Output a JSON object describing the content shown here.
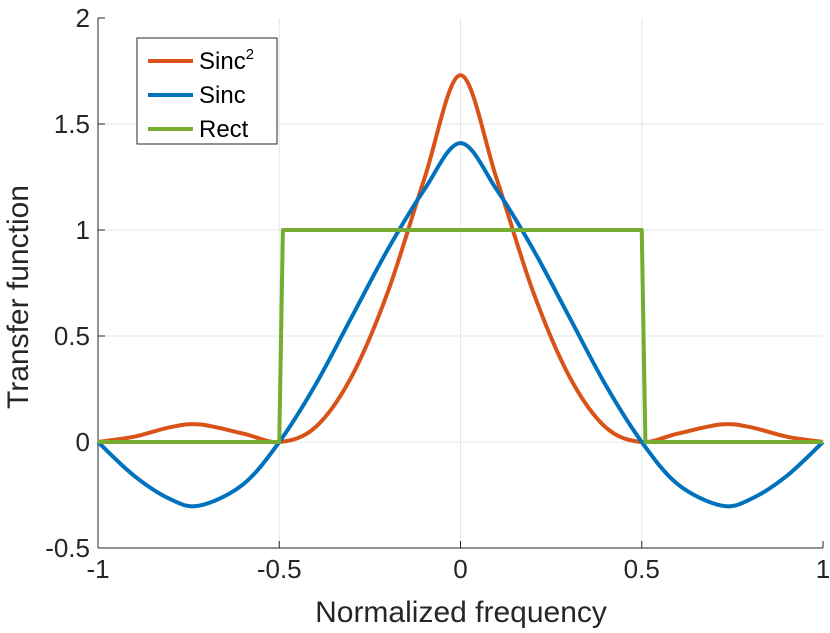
{
  "chart_data": {
    "type": "line",
    "title": "",
    "xlabel": "Normalized frequency",
    "ylabel": "Transfer function",
    "xlim": [
      -1,
      1
    ],
    "ylim": [
      -0.5,
      2
    ],
    "xticks": [
      -1,
      -0.5,
      0,
      0.5,
      1
    ],
    "xtick_labels": [
      "-1",
      "-0.5",
      "0",
      "0.5",
      "1"
    ],
    "yticks": [
      -0.5,
      0,
      0.5,
      1,
      1.5,
      2
    ],
    "ytick_labels": [
      "-0.5",
      "0",
      "0.5",
      "1",
      "1.5",
      "2"
    ],
    "grid": true,
    "legend_position": "top-left",
    "series": [
      {
        "name": "Sinc",
        "superscript": "2",
        "color": "#D95319",
        "x": [
          -1,
          -0.9,
          -0.8,
          -0.72,
          -0.6,
          -0.5,
          -0.4,
          -0.3,
          -0.2,
          -0.1,
          0,
          0.1,
          0.2,
          0.3,
          0.4,
          0.5,
          0.6,
          0.72,
          0.8,
          0.9,
          1
        ],
        "y": [
          0,
          0.025,
          0.07,
          0.083,
          0.04,
          0,
          0.07,
          0.31,
          0.71,
          1.24,
          1.73,
          1.24,
          0.71,
          0.31,
          0.07,
          0,
          0.04,
          0.083,
          0.07,
          0.025,
          0
        ]
      },
      {
        "name": "Sinc",
        "color": "#0072BD",
        "x": [
          -1,
          -0.9,
          -0.8,
          -0.72,
          -0.6,
          -0.5,
          -0.4,
          -0.3,
          -0.2,
          -0.1,
          0,
          0.1,
          0.2,
          0.3,
          0.4,
          0.5,
          0.6,
          0.72,
          0.8,
          0.9,
          1
        ],
        "y": [
          0,
          -0.16,
          -0.27,
          -0.3,
          -0.2,
          0,
          0.27,
          0.59,
          0.91,
          1.19,
          1.41,
          1.19,
          0.91,
          0.59,
          0.27,
          0,
          -0.2,
          -0.3,
          -0.27,
          -0.16,
          0
        ]
      },
      {
        "name": "Rect",
        "color": "#77AC30",
        "x": [
          -1,
          -0.5,
          -0.49,
          0.5,
          0.51,
          1
        ],
        "y": [
          0,
          0,
          1,
          1,
          0,
          0
        ]
      }
    ]
  }
}
